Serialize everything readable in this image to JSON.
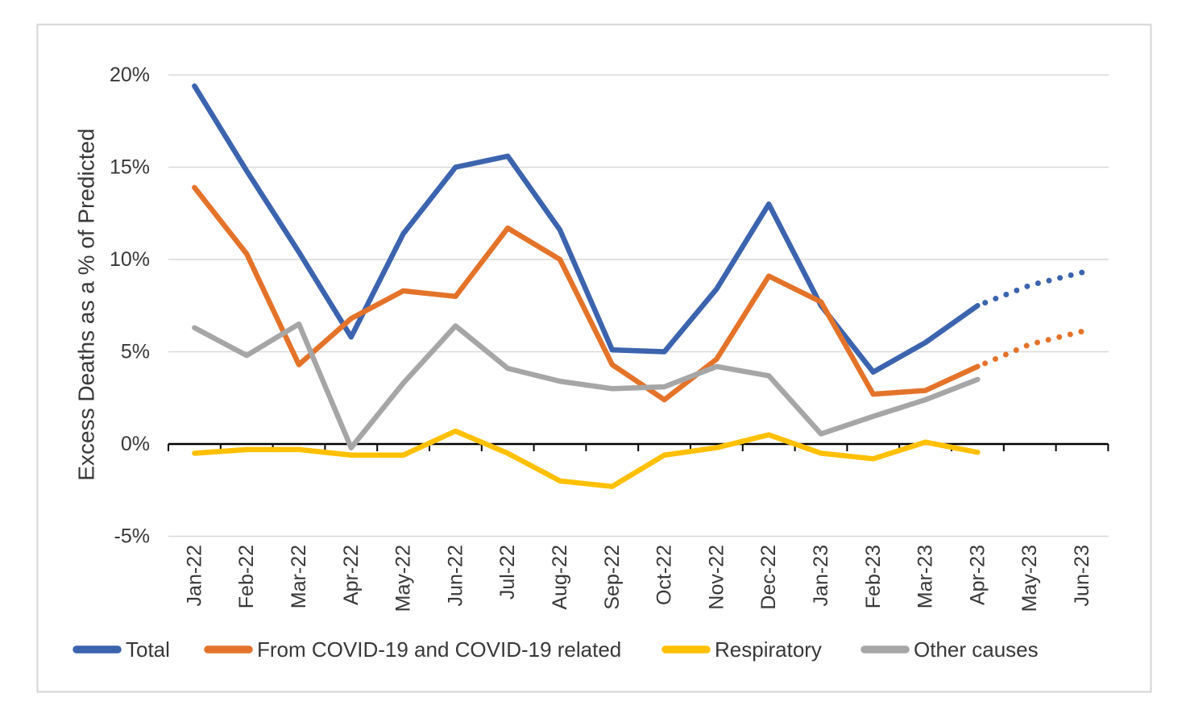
{
  "chart_data": {
    "type": "line",
    "title": "",
    "xlabel": "",
    "ylabel": "Excess Deaths as a % of Predicted",
    "ylim": [
      -5,
      20
    ],
    "ytick_step": 5,
    "yticks": [
      {
        "value": 20,
        "label": "20%"
      },
      {
        "value": 15,
        "label": "15%"
      },
      {
        "value": 10,
        "label": "10%"
      },
      {
        "value": 5,
        "label": "5%"
      },
      {
        "value": 0,
        "label": "0%"
      },
      {
        "value": -5,
        "label": "-5%"
      }
    ],
    "grid": true,
    "legend_position": "bottom",
    "forecast_style": "dotted",
    "solid_through_category": "Apr-23",
    "categories": [
      "Jan-22",
      "Feb-22",
      "Mar-22",
      "Apr-22",
      "May-22",
      "Jun-22",
      "Jul-22",
      "Aug-22",
      "Sep-22",
      "Oct-22",
      "Nov-22",
      "Dec-22",
      "Jan-23",
      "Feb-23",
      "Mar-23",
      "Apr-23",
      "May-23",
      "Jun-23"
    ],
    "series": [
      {
        "name": "Total",
        "color": "#3C64AE",
        "values": [
          19.4,
          14.8,
          10.4,
          5.8,
          11.4,
          15.0,
          15.6,
          11.6,
          5.1,
          5.0,
          8.4,
          13.0,
          7.5,
          3.9,
          5.5,
          7.5,
          8.6,
          9.3
        ],
        "forecast": true
      },
      {
        "name": "From COVID-19 and COVID-19 related",
        "color": "#E4732A",
        "values": [
          13.9,
          10.3,
          4.3,
          6.8,
          8.3,
          8.0,
          11.7,
          10.0,
          4.3,
          2.4,
          4.6,
          9.1,
          7.7,
          2.7,
          2.9,
          4.2,
          5.4,
          6.1
        ],
        "forecast": true
      },
      {
        "name": "Respiratory",
        "color": "#FFC000",
        "values": [
          -0.5,
          -0.3,
          -0.3,
          -0.6,
          -0.6,
          0.7,
          -0.5,
          -2.0,
          -2.3,
          -0.6,
          -0.2,
          0.5,
          -0.5,
          -0.8,
          0.1,
          -0.45,
          null,
          null
        ],
        "forecast": false
      },
      {
        "name": "Other causes",
        "color": "#A6A6A6",
        "values": [
          6.3,
          4.8,
          6.5,
          -0.2,
          3.3,
          6.4,
          4.1,
          3.4,
          3.0,
          3.1,
          4.2,
          3.7,
          0.55,
          1.5,
          2.4,
          3.5,
          null,
          null
        ],
        "forecast": false
      }
    ]
  }
}
